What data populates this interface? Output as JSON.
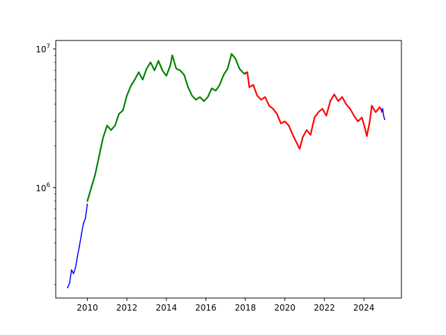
{
  "chart_data": {
    "type": "line",
    "title": "",
    "xlabel": "",
    "ylabel": "",
    "x_scale": "linear",
    "y_scale": "log",
    "xlim": [
      2008.4,
      2025.9
    ],
    "ylim": [
      160000,
      11500000
    ],
    "grid": false,
    "x_ticks": [
      {
        "value": 2010,
        "label": "2010"
      },
      {
        "value": 2012,
        "label": "2012"
      },
      {
        "value": 2014,
        "label": "2014"
      },
      {
        "value": 2016,
        "label": "2016"
      },
      {
        "value": 2018,
        "label": "2018"
      },
      {
        "value": 2020,
        "label": "2020"
      },
      {
        "value": 2022,
        "label": "2022"
      },
      {
        "value": 2024,
        "label": "2024"
      }
    ],
    "y_ticks": [
      {
        "value": 1000000,
        "base": "10",
        "exponent": "6"
      },
      {
        "value": 10000000,
        "base": "10",
        "exponent": "7"
      }
    ],
    "series": [
      {
        "color": "#0000ff",
        "points": [
          [
            2009.0,
            190000
          ],
          [
            2009.1,
            205000
          ],
          [
            2009.2,
            255000
          ],
          [
            2009.3,
            240000
          ],
          [
            2009.4,
            265000
          ],
          [
            2009.5,
            320000
          ],
          [
            2009.6,
            380000
          ],
          [
            2009.7,
            460000
          ],
          [
            2009.8,
            550000
          ],
          [
            2009.9,
            600000
          ],
          [
            2010.0,
            760000
          ]
        ]
      },
      {
        "color": "#008000",
        "points": [
          [
            2010.0,
            800000
          ],
          [
            2010.2,
            1000000
          ],
          [
            2010.4,
            1250000
          ],
          [
            2010.6,
            1700000
          ],
          [
            2010.8,
            2300000
          ],
          [
            2011.0,
            2800000
          ],
          [
            2011.2,
            2600000
          ],
          [
            2011.4,
            2800000
          ],
          [
            2011.6,
            3400000
          ],
          [
            2011.8,
            3600000
          ],
          [
            2012.0,
            4600000
          ],
          [
            2012.2,
            5400000
          ],
          [
            2012.4,
            6000000
          ],
          [
            2012.6,
            6800000
          ],
          [
            2012.8,
            6000000
          ],
          [
            2013.0,
            7200000
          ],
          [
            2013.2,
            8000000
          ],
          [
            2013.4,
            7000000
          ],
          [
            2013.6,
            8200000
          ],
          [
            2013.8,
            7000000
          ],
          [
            2014.0,
            6400000
          ],
          [
            2014.2,
            7600000
          ],
          [
            2014.3,
            9000000
          ],
          [
            2014.5,
            7200000
          ],
          [
            2014.7,
            7000000
          ],
          [
            2014.9,
            6500000
          ],
          [
            2015.1,
            5300000
          ],
          [
            2015.3,
            4600000
          ],
          [
            2015.5,
            4300000
          ],
          [
            2015.7,
            4500000
          ],
          [
            2015.9,
            4200000
          ],
          [
            2016.1,
            4500000
          ],
          [
            2016.3,
            5200000
          ],
          [
            2016.5,
            5000000
          ],
          [
            2016.7,
            5500000
          ],
          [
            2016.9,
            6500000
          ],
          [
            2017.1,
            7200000
          ],
          [
            2017.3,
            9200000
          ],
          [
            2017.5,
            8500000
          ],
          [
            2017.7,
            7200000
          ],
          [
            2017.9,
            6700000
          ],
          [
            2018.0,
            6600000
          ]
        ]
      },
      {
        "color": "#ff0000",
        "points": [
          [
            2018.0,
            6700000
          ],
          [
            2018.1,
            6800000
          ],
          [
            2018.2,
            5300000
          ],
          [
            2018.4,
            5500000
          ],
          [
            2018.6,
            4600000
          ],
          [
            2018.8,
            4300000
          ],
          [
            2019.0,
            4500000
          ],
          [
            2019.2,
            3900000
          ],
          [
            2019.4,
            3700000
          ],
          [
            2019.6,
            3400000
          ],
          [
            2019.8,
            2900000
          ],
          [
            2020.0,
            3000000
          ],
          [
            2020.2,
            2800000
          ],
          [
            2020.4,
            2400000
          ],
          [
            2020.6,
            2100000
          ],
          [
            2020.75,
            1900000
          ],
          [
            2020.9,
            2300000
          ],
          [
            2021.1,
            2600000
          ],
          [
            2021.3,
            2400000
          ],
          [
            2021.5,
            3200000
          ],
          [
            2021.7,
            3500000
          ],
          [
            2021.9,
            3700000
          ],
          [
            2022.1,
            3300000
          ],
          [
            2022.3,
            4200000
          ],
          [
            2022.5,
            4700000
          ],
          [
            2022.7,
            4200000
          ],
          [
            2022.9,
            4500000
          ],
          [
            2023.1,
            4000000
          ],
          [
            2023.3,
            3700000
          ],
          [
            2023.5,
            3300000
          ],
          [
            2023.7,
            3000000
          ],
          [
            2023.9,
            3200000
          ],
          [
            2024.05,
            2700000
          ],
          [
            2024.15,
            2350000
          ],
          [
            2024.3,
            3000000
          ],
          [
            2024.4,
            3900000
          ],
          [
            2024.6,
            3500000
          ],
          [
            2024.8,
            3800000
          ],
          [
            2024.9,
            3600000
          ]
        ]
      },
      {
        "color": "#0000ff",
        "points": [
          [
            2024.9,
            3500000
          ],
          [
            2024.95,
            3700000
          ],
          [
            2025.0,
            3300000
          ],
          [
            2025.05,
            3100000
          ]
        ]
      }
    ]
  }
}
